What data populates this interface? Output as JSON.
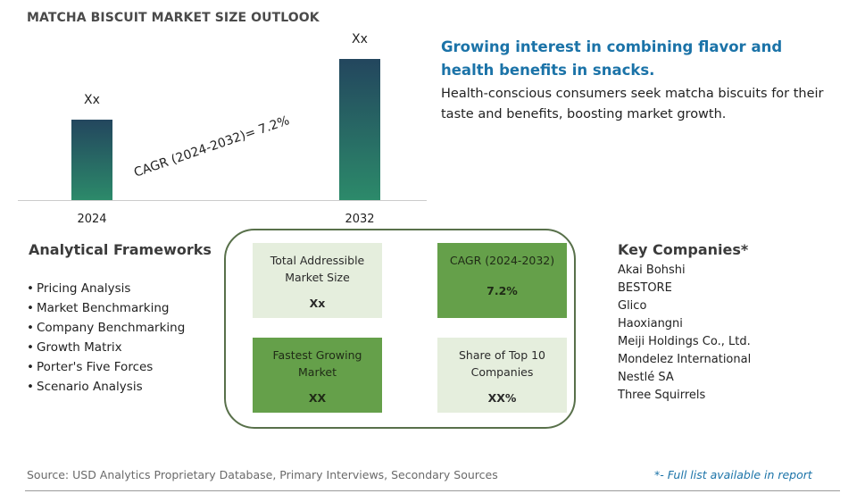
{
  "header": {
    "title": "MATCHA BISCUIT MARKET SIZE OUTLOOK"
  },
  "chart_data": {
    "type": "bar",
    "categories": [
      "2024",
      "2032"
    ],
    "data_labels": [
      "Xx",
      "Xx"
    ],
    "values": [
      0.57,
      1.0
    ],
    "annotation": "CAGR (2024-2032)=   7.2%",
    "colors": {
      "bar_top": "#23465e",
      "bar_bottom": "#2c8a6a",
      "axis": "#cccccc"
    }
  },
  "insight": {
    "title": "Growing interest in combining flavor and health benefits in snacks.",
    "body": "Health-conscious consumers seek matcha biscuits for their taste and benefits, boosting market growth."
  },
  "frameworks": {
    "title": "Analytical Frameworks",
    "items": [
      "Pricing Analysis",
      "Market Benchmarking",
      "Company Benchmarking",
      "Growth Matrix",
      "Porter's Five Forces",
      "Scenario Analysis"
    ]
  },
  "metrics": {
    "tam": {
      "label": "Total Addressible Market Size",
      "value": "Xx"
    },
    "cagr": {
      "label": "CAGR (2024-2032)",
      "value": "7.2%"
    },
    "fastest": {
      "label": "Fastest Growing Market",
      "value": "XX"
    },
    "share": {
      "label": "Share of Top 10 Companies",
      "value": "XX%"
    },
    "colors": {
      "light": "#e5eedd",
      "dark": "#65a04a",
      "border": "#58704a"
    }
  },
  "companies": {
    "title": "Key Companies*",
    "items": [
      "Akai Bohshi",
      "BESTORE",
      "Glico",
      "Haoxiangni",
      "Meiji Holdings Co., Ltd.",
      "Mondelez International",
      "Nestlé SA",
      "Three Squirrels"
    ]
  },
  "footer": {
    "source": "Source: USD Analytics Proprietary Database, Primary Interviews, Secondary Sources",
    "note": "*- Full list available in report"
  }
}
